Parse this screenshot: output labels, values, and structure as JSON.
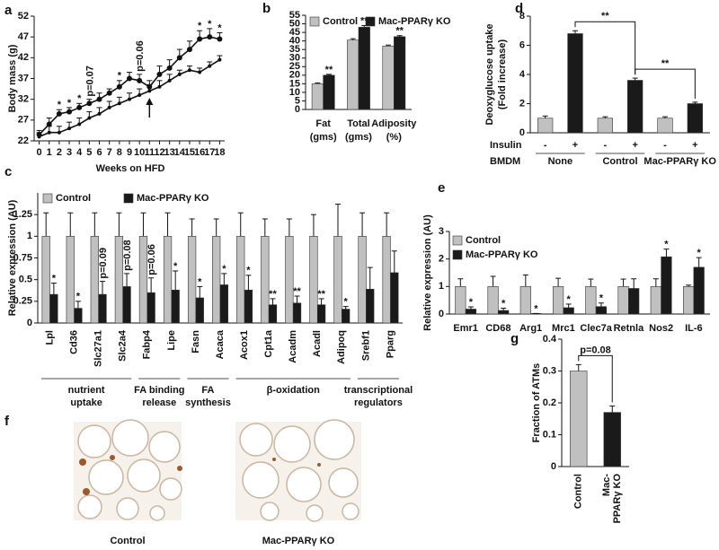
{
  "chart_data": [
    {
      "type": "line",
      "panel": "a",
      "xlabel": "Weeks on HFD",
      "ylabel": "Body mass (g)",
      "x": [
        0,
        1,
        2,
        3,
        4,
        5,
        6,
        7,
        8,
        9,
        10,
        11,
        12,
        13,
        14,
        15,
        16,
        17,
        18
      ],
      "xlim": [
        -0.5,
        18.5
      ],
      "xticks": [
        0,
        1,
        2,
        3,
        4,
        5,
        6,
        7,
        8,
        9,
        10,
        11,
        12,
        13,
        14,
        15,
        16,
        17,
        18
      ],
      "ylim": [
        22,
        52
      ],
      "yticks": [
        22,
        27,
        32,
        37,
        42,
        47,
        52
      ],
      "arrow_x": 11,
      "series": [
        {
          "color": "#111111",
          "values": [
            23.5,
            26,
            28.5,
            29,
            30,
            31,
            32,
            33.5,
            35,
            37,
            36.5,
            35,
            38,
            39.5,
            42,
            44,
            46.5,
            47,
            46.5
          ],
          "errors": [
            1,
            1.5,
            1,
            1,
            1,
            1,
            1.5,
            1,
            1.5,
            1.5,
            1.5,
            1.5,
            2,
            2,
            2,
            2,
            2,
            2,
            1.5
          ],
          "annotations": [
            null,
            null,
            "*",
            "*",
            "*",
            "p=0.07",
            null,
            null,
            "*",
            null,
            "p=0.06",
            null,
            null,
            null,
            null,
            null,
            "*",
            "*",
            "*"
          ]
        },
        {
          "color": "#111111",
          "values": [
            23,
            24,
            24,
            25,
            26,
            27.5,
            28.5,
            30,
            31,
            32,
            33,
            34,
            35,
            36.5,
            38,
            39,
            38.5,
            40,
            41.5
          ],
          "errors": [
            1,
            1.5,
            1.5,
            1.5,
            1.5,
            1.5,
            1.5,
            1.5,
            1.5,
            1.5,
            1.5,
            1.5,
            1.5,
            1.5,
            1,
            1,
            1,
            1,
            1
          ]
        }
      ]
    },
    {
      "type": "bar",
      "panel": "b",
      "categories": [
        [
          "Fat",
          "(gms)"
        ],
        [
          "Total",
          "(gms)"
        ],
        [
          "Adiposity",
          "(%)"
        ]
      ],
      "ylim": [
        0,
        55
      ],
      "yticks": [
        0,
        5,
        10,
        15,
        20,
        25,
        30,
        35,
        40,
        45,
        50,
        55
      ],
      "legend": "top-left",
      "series": [
        {
          "name": "Control",
          "color": "#c0c0c0",
          "values": [
            15,
            40.5,
            37
          ],
          "errors": [
            0.5,
            0.8,
            0.6
          ]
        },
        {
          "name": "Mac-PPARγ KO",
          "color": "#1a1a1a",
          "values": [
            20,
            48,
            42.5
          ],
          "errors": [
            0.5,
            1,
            0.6
          ],
          "annotations": [
            "**",
            "**",
            "**"
          ]
        }
      ]
    },
    {
      "type": "bar",
      "panel": "c",
      "ylabel": "Relative expression (AU)",
      "rotate_labels": true,
      "legend": "top-left",
      "categories": [
        "Lpl",
        "Cd36",
        "Slc27a1",
        "Slc2a4",
        "Fabp4",
        "Lipe",
        "Fasn",
        "Acaca",
        "Acox1",
        "Cpt1a",
        "Acadm",
        "Acadl",
        "Adipoq",
        "Srebf1",
        "Pparg"
      ],
      "ylim": [
        0,
        1.5
      ],
      "yticks": [
        0,
        0.25,
        0.5,
        0.75,
        1,
        1.25
      ],
      "series": [
        {
          "name": "Control",
          "color": "#c0c0c0",
          "values": [
            1,
            1,
            1,
            1,
            1,
            1,
            1,
            1,
            1,
            1,
            1,
            1,
            1,
            1,
            1
          ],
          "errors": [
            0.27,
            0.27,
            0.27,
            0.27,
            0.27,
            0.27,
            0.2,
            0.2,
            0.27,
            0.2,
            0.2,
            0.25,
            0.37,
            0.27,
            0.27
          ]
        },
        {
          "name": "Mac-PPARγ KO",
          "color": "#1a1a1a",
          "values": [
            0.33,
            0.17,
            0.33,
            0.42,
            0.35,
            0.38,
            0.29,
            0.44,
            0.38,
            0.21,
            0.23,
            0.21,
            0.16,
            0.39,
            0.58
          ],
          "errors": [
            0.13,
            0.08,
            0.15,
            0.15,
            0.17,
            0.22,
            0.13,
            0.13,
            0.17,
            0.07,
            0.08,
            0.07,
            0.03,
            0.25,
            0.25
          ],
          "annotations": [
            "*",
            "*",
            "p=0.09",
            "p=0.08",
            "p=0.06",
            "*",
            "*",
            "*",
            "*",
            "**",
            "**",
            "**",
            "*",
            null,
            null
          ]
        }
      ],
      "groups": [
        {
          "label": [
            "nutrient",
            "uptake"
          ],
          "members": [
            "Lpl",
            "Cd36",
            "Slc27a1",
            "Slc2a4"
          ]
        },
        {
          "label": [
            "FA binding",
            "release"
          ],
          "members": [
            "Fabp4",
            "Lipe"
          ]
        },
        {
          "label": [
            "FA",
            "synthesis"
          ],
          "members": [
            "Fasn",
            "Acaca"
          ]
        },
        {
          "label": [
            "β-oxidation"
          ],
          "members": [
            "Acox1",
            "Cpt1a",
            "Acadm",
            "Acadl",
            "Adipoq"
          ]
        },
        {
          "label": [
            "transcriptional",
            "regulators"
          ],
          "members": [
            "Srebf1",
            "Pparg"
          ]
        }
      ]
    },
    {
      "type": "bar",
      "panel": "d",
      "ylabel": [
        "Deoxyglucose uptake",
        "(Fold increase)"
      ],
      "categories": [
        "-",
        "+",
        "-",
        "+",
        "-",
        "+"
      ],
      "row_labels": [
        "Insulin",
        "BMDM"
      ],
      "group_labels": [
        "None",
        "Control",
        "Mac-PPARγ KO"
      ],
      "ylim": [
        0,
        8
      ],
      "yticks": [
        0,
        2,
        4,
        6,
        8
      ],
      "series": [
        {
          "colors": [
            "#c0c0c0",
            "#1a1a1a",
            "#c0c0c0",
            "#1a1a1a",
            "#c0c0c0",
            "#1a1a1a"
          ],
          "values": [
            1,
            6.8,
            1,
            3.6,
            1,
            2
          ],
          "errors": [
            0.15,
            0.2,
            0.1,
            0.15,
            0.1,
            0.1
          ]
        }
      ],
      "brackets": [
        {
          "from": 1,
          "to": 3,
          "text": "**"
        },
        {
          "from": 3,
          "to": 5,
          "text": "**"
        }
      ]
    },
    {
      "type": "bar",
      "panel": "e",
      "ylabel": "Relative expression (AU)",
      "legend": "top-left",
      "categories": [
        "Emr1",
        "CD68",
        "Arg1",
        "Mrc1",
        "Clec7a",
        "Retnla",
        "Nos2",
        "IL-6"
      ],
      "ylim": [
        0,
        3
      ],
      "yticks": [
        0,
        1,
        2,
        3
      ],
      "series": [
        {
          "name": "Control",
          "color": "#c0c0c0",
          "values": [
            1,
            1,
            1,
            1,
            1,
            1,
            1,
            1
          ],
          "errors": [
            0.28,
            0.37,
            0.42,
            0.3,
            0.27,
            0.27,
            0.28,
            0.05
          ]
        },
        {
          "name": "Mac-PPARγ KO",
          "color": "#1a1a1a",
          "values": [
            0.18,
            0.13,
            0.02,
            0.23,
            0.27,
            0.93,
            2.08,
            1.7
          ],
          "errors": [
            0.08,
            0.08,
            0,
            0.13,
            0.13,
            0.35,
            0.28,
            0.35
          ],
          "annotations": [
            "*",
            "*",
            "*",
            "*",
            "*",
            null,
            "*",
            "*"
          ]
        }
      ]
    },
    {
      "type": "bar",
      "panel": "g",
      "ylabel": "Fraction of ATMs",
      "rotate_labels": true,
      "categories": [
        "Control",
        [
          "Mac-",
          "PPARγ KO"
        ]
      ],
      "ylim": [
        0,
        0.4
      ],
      "yticks": [
        0,
        0.1,
        0.2,
        0.3,
        0.4
      ],
      "series": [
        {
          "colors": [
            "#c0c0c0",
            "#1a1a1a"
          ],
          "values": [
            0.3,
            0.17
          ],
          "errors": [
            0.02,
            0.02
          ]
        }
      ],
      "brackets": [
        {
          "from": 0,
          "to": 1,
          "text": "p=0.08"
        }
      ]
    }
  ],
  "figure_f": {
    "panel": "f",
    "captions": [
      "Control",
      "Mac-PPARγ KO"
    ]
  }
}
